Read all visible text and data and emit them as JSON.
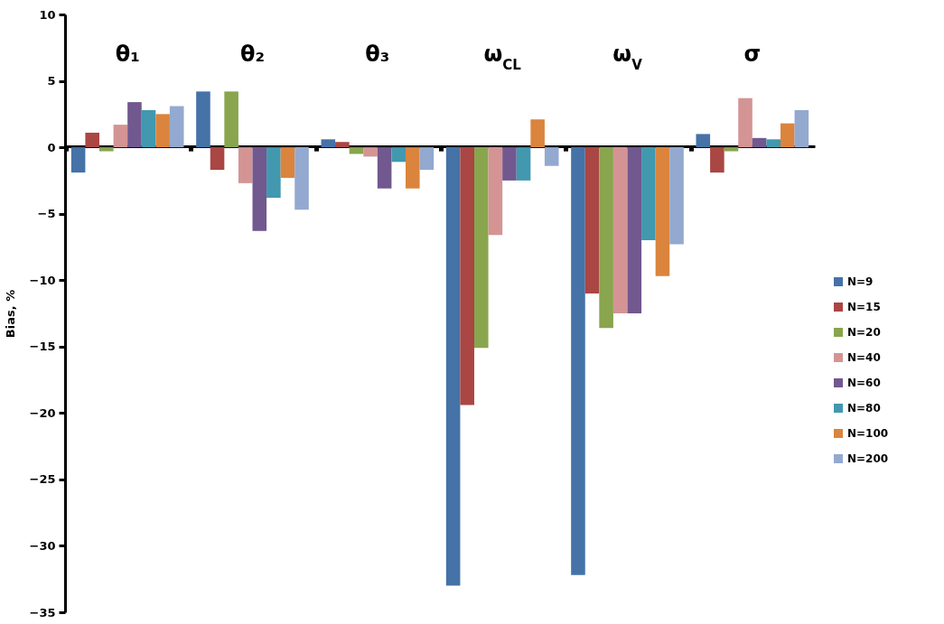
{
  "chart_data": {
    "type": "bar",
    "ylabel": "Bias, %",
    "categories": [
      "θ₁",
      "θ₂",
      "θ₃",
      "ω$_{CL}$",
      "ω$_{V}$",
      "σ"
    ],
    "series": [
      {
        "name": "N=9",
        "color": "#4572a7",
        "values": [
          -1.9,
          4.2,
          0.6,
          -33.0,
          -32.2,
          1.0
        ]
      },
      {
        "name": "N=15",
        "color": "#aa4643",
        "values": [
          1.1,
          -1.7,
          0.4,
          -19.4,
          -11.0,
          -1.9
        ]
      },
      {
        "name": "N=20",
        "color": "#89a54e",
        "values": [
          -0.3,
          4.2,
          -0.5,
          -15.1,
          -13.6,
          -0.3
        ]
      },
      {
        "name": "N=40",
        "color": "#d49494",
        "values": [
          1.7,
          -2.7,
          -0.7,
          -6.6,
          -12.5,
          3.7
        ]
      },
      {
        "name": "N=60",
        "color": "#71588f",
        "values": [
          3.4,
          -6.3,
          -3.1,
          -2.5,
          -12.5,
          0.7
        ]
      },
      {
        "name": "N=80",
        "color": "#4198af",
        "values": [
          2.8,
          -3.8,
          -1.1,
          -2.5,
          -7.0,
          0.6
        ]
      },
      {
        "name": "N=100",
        "color": "#db843d",
        "values": [
          2.5,
          -2.3,
          -3.1,
          2.1,
          -9.7,
          1.8
        ]
      },
      {
        "name": "N=200",
        "color": "#93a9cf",
        "values": [
          3.1,
          -4.7,
          -1.7,
          -1.4,
          -7.3,
          2.8
        ]
      }
    ],
    "ylim": [
      -35,
      10
    ],
    "yticks": [
      -35,
      -30,
      -25,
      -20,
      -15,
      -10,
      -5,
      0,
      5,
      10
    ],
    "legend": "right"
  }
}
